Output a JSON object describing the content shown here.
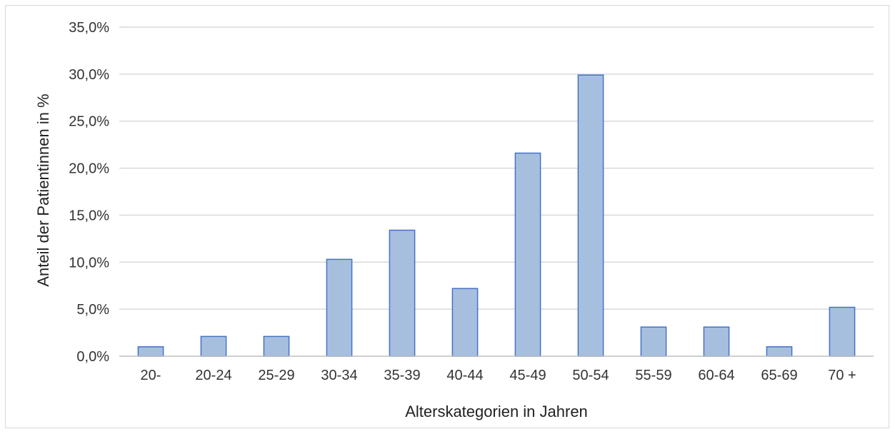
{
  "chart_data": {
    "type": "bar",
    "title": "",
    "xlabel": "Alterskategorien in Jahren",
    "ylabel": "Anteil der Patientinnen in %",
    "categories": [
      "20-",
      "20-24",
      "25-29",
      "30-34",
      "35-39",
      "40-44",
      "45-49",
      "50-54",
      "55-59",
      "60-64",
      "65-69",
      "70 +"
    ],
    "values": [
      1.0,
      2.1,
      2.1,
      10.3,
      13.4,
      7.2,
      21.6,
      29.9,
      3.1,
      3.1,
      1.0,
      5.2
    ],
    "ylim": [
      0,
      35
    ],
    "yticks": [
      0,
      5,
      10,
      15,
      20,
      25,
      30,
      35
    ],
    "ytick_labels": [
      "0,0%",
      "5,0%",
      "10,0%",
      "15,0%",
      "20,0%",
      "25,0%",
      "30,0%",
      "35,0%"
    ],
    "grid": true,
    "legend": "none",
    "colors": {
      "bar_fill": "#a7bfdf",
      "bar_stroke": "#4472c4",
      "grid": "#d9d9d9",
      "axis": "#bfbfbf"
    }
  }
}
